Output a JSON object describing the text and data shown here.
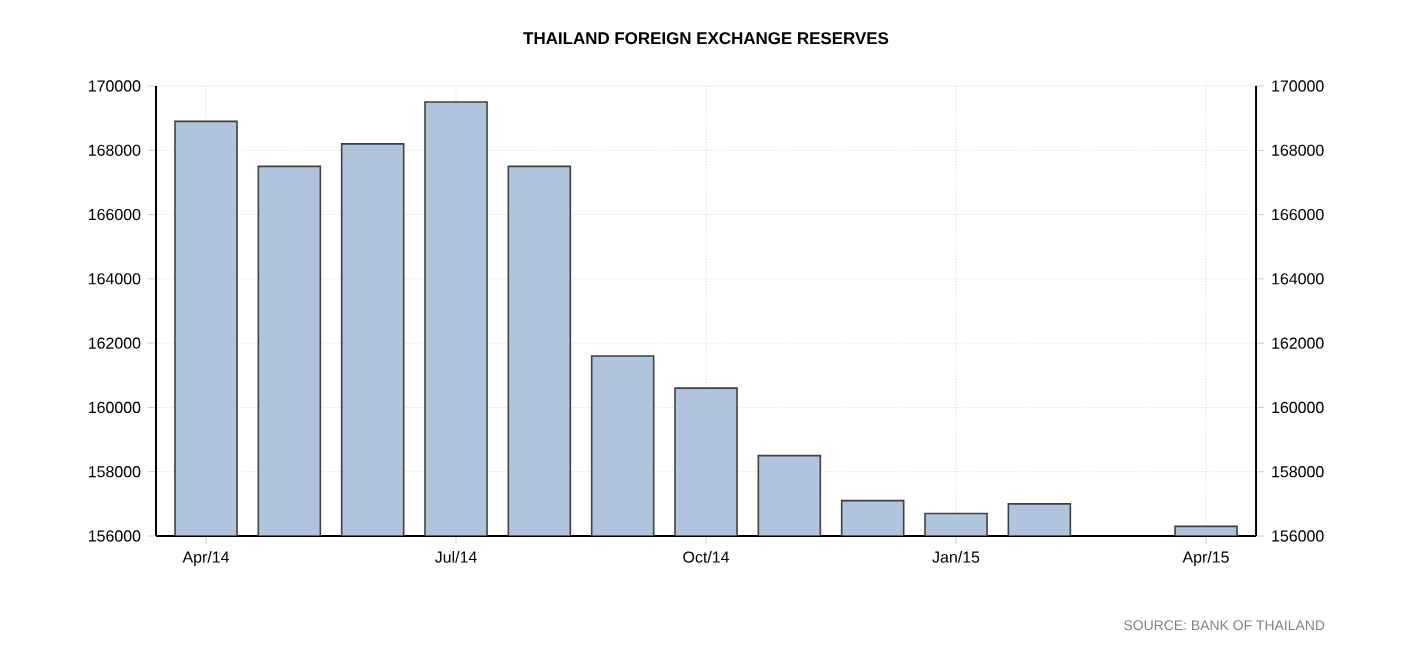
{
  "chart_data": {
    "type": "bar",
    "title": "THAILAND FOREIGN EXCHANGE RESERVES",
    "categories": [
      "Apr/14",
      null,
      null,
      "Jul/14",
      null,
      null,
      "Oct/14",
      null,
      null,
      "Jan/15",
      null,
      null,
      "Apr/15"
    ],
    "values": [
      168900,
      167500,
      168200,
      169500,
      167500,
      161600,
      160600,
      158500,
      157100,
      156700,
      157000,
      null,
      156300
    ],
    "color": "#b0c4de",
    "ylim": [
      156000,
      170000
    ],
    "yticks": [
      156000,
      158000,
      160000,
      162000,
      164000,
      166000,
      168000,
      170000
    ],
    "y2lim": [
      156000,
      170000
    ],
    "y2ticks": [
      156000,
      158000,
      160000,
      162000,
      164000,
      166000,
      168000,
      170000
    ],
    "grid": true,
    "annotations": [
      "SOURCE: BANK OF THAILAND"
    ]
  }
}
